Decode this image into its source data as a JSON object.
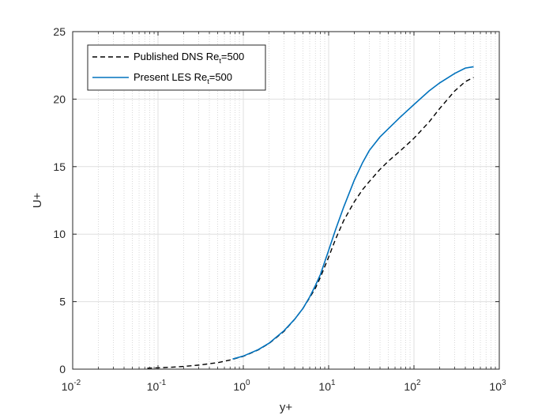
{
  "colors": {
    "dns": "#000000",
    "les": "#0072BD",
    "axis": "#262626",
    "grid_major": "#DFDFDF",
    "grid_minor": "#CFCFCF"
  },
  "chart_data": {
    "type": "line",
    "xscale": "log",
    "xlabel": "y+",
    "ylabel": "U+",
    "xlim": [
      0.01,
      1000
    ],
    "ylim": [
      0,
      25
    ],
    "grid": true,
    "legend_position": "top-left",
    "x_ticks": [
      {
        "base": "10",
        "exp": "-2",
        "value": 0.01
      },
      {
        "base": "10",
        "exp": "-1",
        "value": 0.1
      },
      {
        "base": "10",
        "exp": "0",
        "value": 1
      },
      {
        "base": "10",
        "exp": "1",
        "value": 10
      },
      {
        "base": "10",
        "exp": "2",
        "value": 100
      },
      {
        "base": "10",
        "exp": "3",
        "value": 1000
      }
    ],
    "y_ticks": [
      {
        "label": "0",
        "value": 0
      },
      {
        "label": "5",
        "value": 5
      },
      {
        "label": "10",
        "value": 10
      },
      {
        "label": "15",
        "value": 15
      },
      {
        "label": "20",
        "value": 20
      },
      {
        "label": "25",
        "value": 25
      }
    ],
    "series": [
      {
        "name_main": "Published DNS Re",
        "name_sub": "t",
        "name_tail": "=500",
        "style": "dashed",
        "color": "#000000",
        "x": [
          0.075,
          0.1,
          0.15,
          0.2,
          0.3,
          0.5,
          0.7,
          1,
          1.5,
          2,
          3,
          4,
          5,
          6,
          7,
          8,
          10,
          12,
          15,
          20,
          25,
          30,
          40,
          50,
          70,
          100,
          150,
          200,
          300,
          400,
          500
        ],
        "y": [
          0.075,
          0.1,
          0.15,
          0.2,
          0.3,
          0.48,
          0.68,
          0.95,
          1.43,
          1.9,
          2.8,
          3.7,
          4.5,
          5.3,
          6.0,
          6.8,
          8.3,
          9.6,
          11.0,
          12.4,
          13.3,
          13.9,
          14.8,
          15.4,
          16.2,
          17.1,
          18.3,
          19.3,
          20.6,
          21.3,
          21.6
        ]
      },
      {
        "name_main": "Present LES Re",
        "name_sub": "t",
        "name_tail": "=500",
        "style": "solid",
        "color": "#0072BD",
        "x": [
          0.75,
          1,
          1.5,
          2,
          3,
          4,
          5,
          6,
          7,
          8,
          10,
          12,
          15,
          20,
          25,
          30,
          40,
          50,
          70,
          100,
          150,
          200,
          300,
          400,
          500
        ],
        "y": [
          0.75,
          0.97,
          1.45,
          1.92,
          2.85,
          3.7,
          4.5,
          5.35,
          6.2,
          7.0,
          8.8,
          10.3,
          12.0,
          14.0,
          15.3,
          16.2,
          17.2,
          17.8,
          18.7,
          19.6,
          20.6,
          21.2,
          21.9,
          22.3,
          22.4
        ]
      }
    ]
  }
}
